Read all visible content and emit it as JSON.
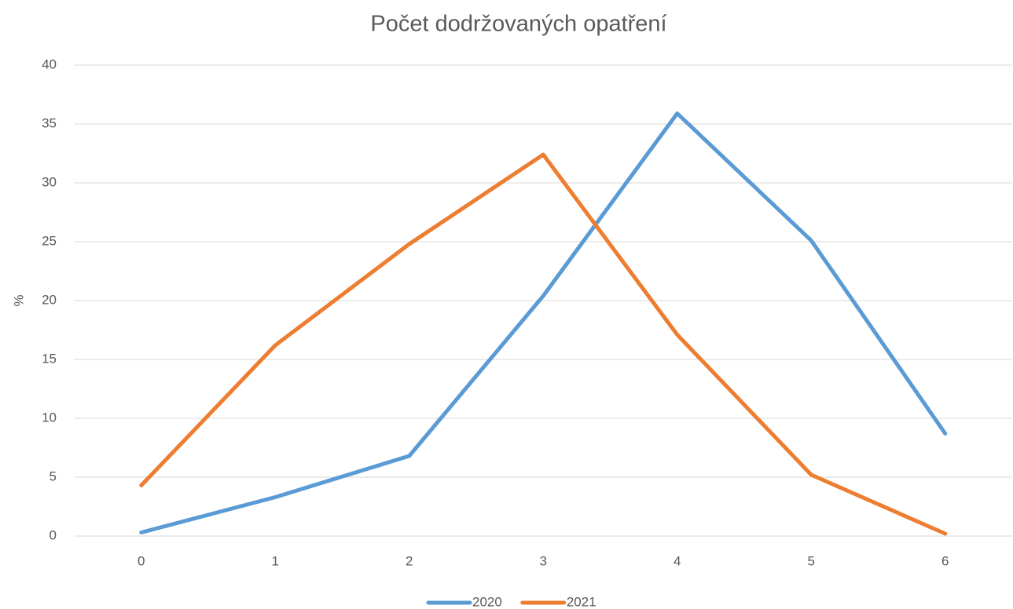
{
  "chart_data": {
    "type": "line",
    "title": "Počet dodržovaných opatření",
    "y_label": "%",
    "categories": [
      "0",
      "1",
      "2",
      "3",
      "4",
      "5",
      "6"
    ],
    "series": [
      {
        "name": "2020",
        "color": "#5b9bd5",
        "values": [
          0.3,
          3.3,
          6.8,
          20.4,
          35.9,
          25.1,
          8.7
        ]
      },
      {
        "name": "2021",
        "color": "#ed7d31",
        "values": [
          4.3,
          16.2,
          24.8,
          32.4,
          17.1,
          5.2,
          0.2
        ]
      }
    ],
    "ylim": [
      0,
      40
    ],
    "yticks": [
      0,
      5,
      10,
      15,
      20,
      25,
      30,
      35,
      40
    ],
    "grid": true,
    "legend": "bottom"
  }
}
